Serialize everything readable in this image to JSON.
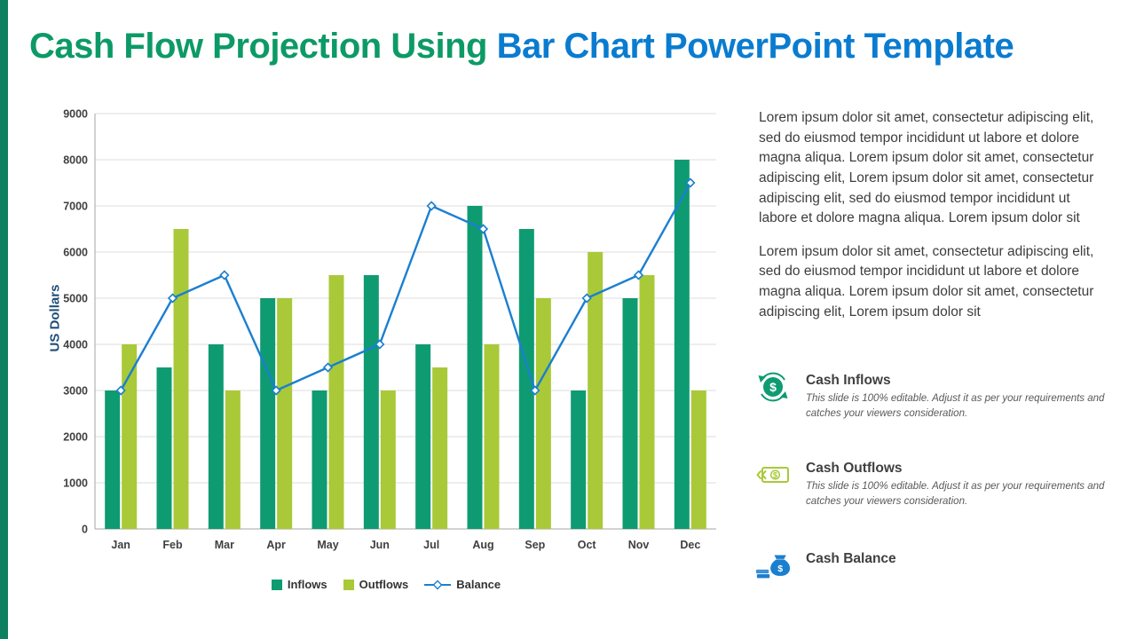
{
  "title": {
    "part1": "Cash Flow Projection Using ",
    "part2": "Bar Chart PowerPoint Template"
  },
  "theme": {
    "title_part1_color": "#0c9a66",
    "title_part2_color": "#0a7cd0",
    "accent_strip_color": "#0d8062",
    "body_text_color": "#3d3d3d"
  },
  "chart_data": {
    "type": "bar",
    "title": "",
    "categories": [
      "Jan",
      "Feb",
      "Mar",
      "Apr",
      "May",
      "Jun",
      "Jul",
      "Aug",
      "Sep",
      "Oct",
      "Nov",
      "Dec"
    ],
    "series": [
      {
        "name": "Inflows",
        "type": "bar",
        "color": "#0f9b72",
        "values": [
          3000,
          3500,
          4000,
          5000,
          3000,
          5500,
          4000,
          7000,
          6500,
          3000,
          5000,
          8000
        ]
      },
      {
        "name": "Outflows",
        "type": "bar",
        "color": "#a9c938",
        "values": [
          4000,
          6500,
          3000,
          5000,
          5500,
          3000,
          3500,
          4000,
          5000,
          6000,
          5500,
          3000
        ]
      },
      {
        "name": "Balance",
        "type": "line",
        "color": "#1b7fd0",
        "values": [
          3000,
          5000,
          5500,
          3000,
          3500,
          4000,
          7000,
          6500,
          3000,
          5000,
          5500,
          7500
        ]
      }
    ],
    "xlabel": "",
    "ylabel": "US Dollars",
    "ylim": [
      0,
      9000
    ],
    "ytick_step": 1000,
    "grid": true,
    "legend_position": "bottom"
  },
  "sidebar": {
    "paragraphs": [
      "Lorem ipsum dolor sit amet, consectetur adipiscing elit, sed do eiusmod tempor incididunt ut labore et dolore magna aliqua. Lorem ipsum dolor sit amet, consectetur adipiscing elit, Lorem ipsum dolor sit amet, consectetur adipiscing elit, sed do eiusmod tempor incididunt ut labore et dolore magna aliqua. Lorem ipsum dolor sit",
      "Lorem ipsum dolor sit amet, consectetur adipiscing elit, sed do eiusmod tempor incididunt ut labore et dolore magna aliqua. Lorem ipsum dolor sit amet, consectetur adipiscing elit, Lorem ipsum dolor sit"
    ],
    "features": [
      {
        "title": "Cash Inflows",
        "description": "This slide is 100% editable. Adjust it as per your requirements and catches your viewers consideration.",
        "icon": "dollar-coin-cycle-icon",
        "color": "#0f9b72"
      },
      {
        "title": "Cash Outflows",
        "description": "This slide is 100% editable. Adjust it as per your requirements and catches your viewers consideration.",
        "icon": "banknote-arrows-icon",
        "color": "#a9c938"
      },
      {
        "title": "Cash Balance",
        "description": "",
        "icon": "money-bag-icon",
        "color": "#1b7fd0"
      }
    ]
  }
}
